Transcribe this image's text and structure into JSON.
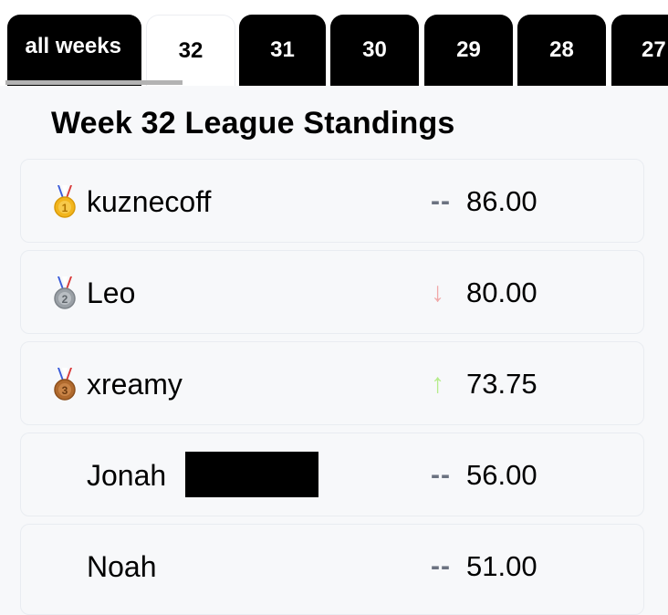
{
  "tabs": [
    {
      "label": "all weeks",
      "active": false
    },
    {
      "label": "32",
      "active": true
    },
    {
      "label": "31",
      "active": false
    },
    {
      "label": "30",
      "active": false
    },
    {
      "label": "29",
      "active": false
    },
    {
      "label": "28",
      "active": false
    },
    {
      "label": "27",
      "active": false
    }
  ],
  "title": "Week 32 League Standings",
  "standings": [
    {
      "medal": "gold",
      "medal_icon": "gold-medal-icon",
      "name": "kuznecoff",
      "trend": "--",
      "trend_type": "same",
      "score": "86.00"
    },
    {
      "medal": "silver",
      "medal_icon": "silver-medal-icon",
      "name": "Leo",
      "trend": "↓",
      "trend_type": "down",
      "score": "80.00"
    },
    {
      "medal": "bronze",
      "medal_icon": "bronze-medal-icon",
      "name": "xreamy",
      "trend": "↑",
      "trend_type": "up",
      "score": "73.75"
    },
    {
      "medal": "",
      "name": "Jonah",
      "redacted": true,
      "trend": "--",
      "trend_type": "same",
      "score": "56.00"
    },
    {
      "medal": "",
      "name": "Noah",
      "trend": "--",
      "trend_type": "same",
      "score": "51.00"
    }
  ],
  "colors": {
    "trend_same": "#6b7280",
    "trend_down": "#f0a8a8",
    "trend_up": "#b5ec8a",
    "gold": "#f2b51d",
    "silver": "#9aa0a6",
    "bronze": "#b06a2e"
  }
}
